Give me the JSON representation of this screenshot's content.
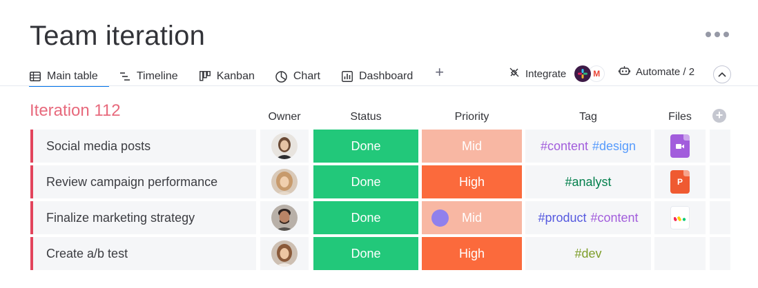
{
  "board": {
    "title": "Team iteration"
  },
  "tabs": [
    {
      "label": "Main table",
      "icon": "table-icon",
      "active": true
    },
    {
      "label": "Timeline",
      "icon": "timeline-icon",
      "active": false
    },
    {
      "label": "Kanban",
      "icon": "kanban-icon",
      "active": false
    },
    {
      "label": "Chart",
      "icon": "chart-icon",
      "active": false
    },
    {
      "label": "Dashboard",
      "icon": "dashboard-icon",
      "active": false
    }
  ],
  "toolbar": {
    "add_tab": "+",
    "integrate_label": "Integrate",
    "automate_label": "Automate / 2"
  },
  "group": {
    "title": "Iteration 112",
    "color": "#e2445c"
  },
  "columns": {
    "owner": "Owner",
    "status": "Status",
    "priority": "Priority",
    "tag": "Tag",
    "files": "Files"
  },
  "colors": {
    "done": "#22c87a",
    "high": "#fb6a3c",
    "mid": "#f8b7a3",
    "accent": "#0073ea"
  },
  "rows": [
    {
      "name": "Social media posts",
      "status": "Done",
      "priority": "Mid",
      "tags": [
        {
          "text": "#content",
          "color": "#a25ddc"
        },
        {
          "text": "#design",
          "color": "#579bfc"
        }
      ],
      "file": {
        "icon": "video-file-icon",
        "color": "#a25ddc"
      },
      "avatar_color": "#c9a789"
    },
    {
      "name": "Review campaign performance",
      "status": "Done",
      "priority": "High",
      "tags": [
        {
          "text": "#analyst",
          "color": "#037f4c"
        }
      ],
      "file": {
        "icon": "presentation-file-icon",
        "color": "#ef5a31",
        "letter": "P"
      },
      "avatar_color": "#d8ad86"
    },
    {
      "name": "Finalize marketing strategy",
      "status": "Done",
      "priority": "Mid",
      "tags": [
        {
          "text": "#product",
          "color": "#5559df"
        },
        {
          "text": "#content",
          "color": "#a25ddc"
        }
      ],
      "file": {
        "icon": "monday-logo-icon",
        "color": "#ffffff"
      },
      "avatar_color": "#8a6a55"
    },
    {
      "name": "Create a/b test",
      "status": "Done",
      "priority": "High",
      "tags": [
        {
          "text": "#dev",
          "color": "#7e9e2b"
        }
      ],
      "file": null,
      "avatar_color": "#c29a7b"
    }
  ]
}
